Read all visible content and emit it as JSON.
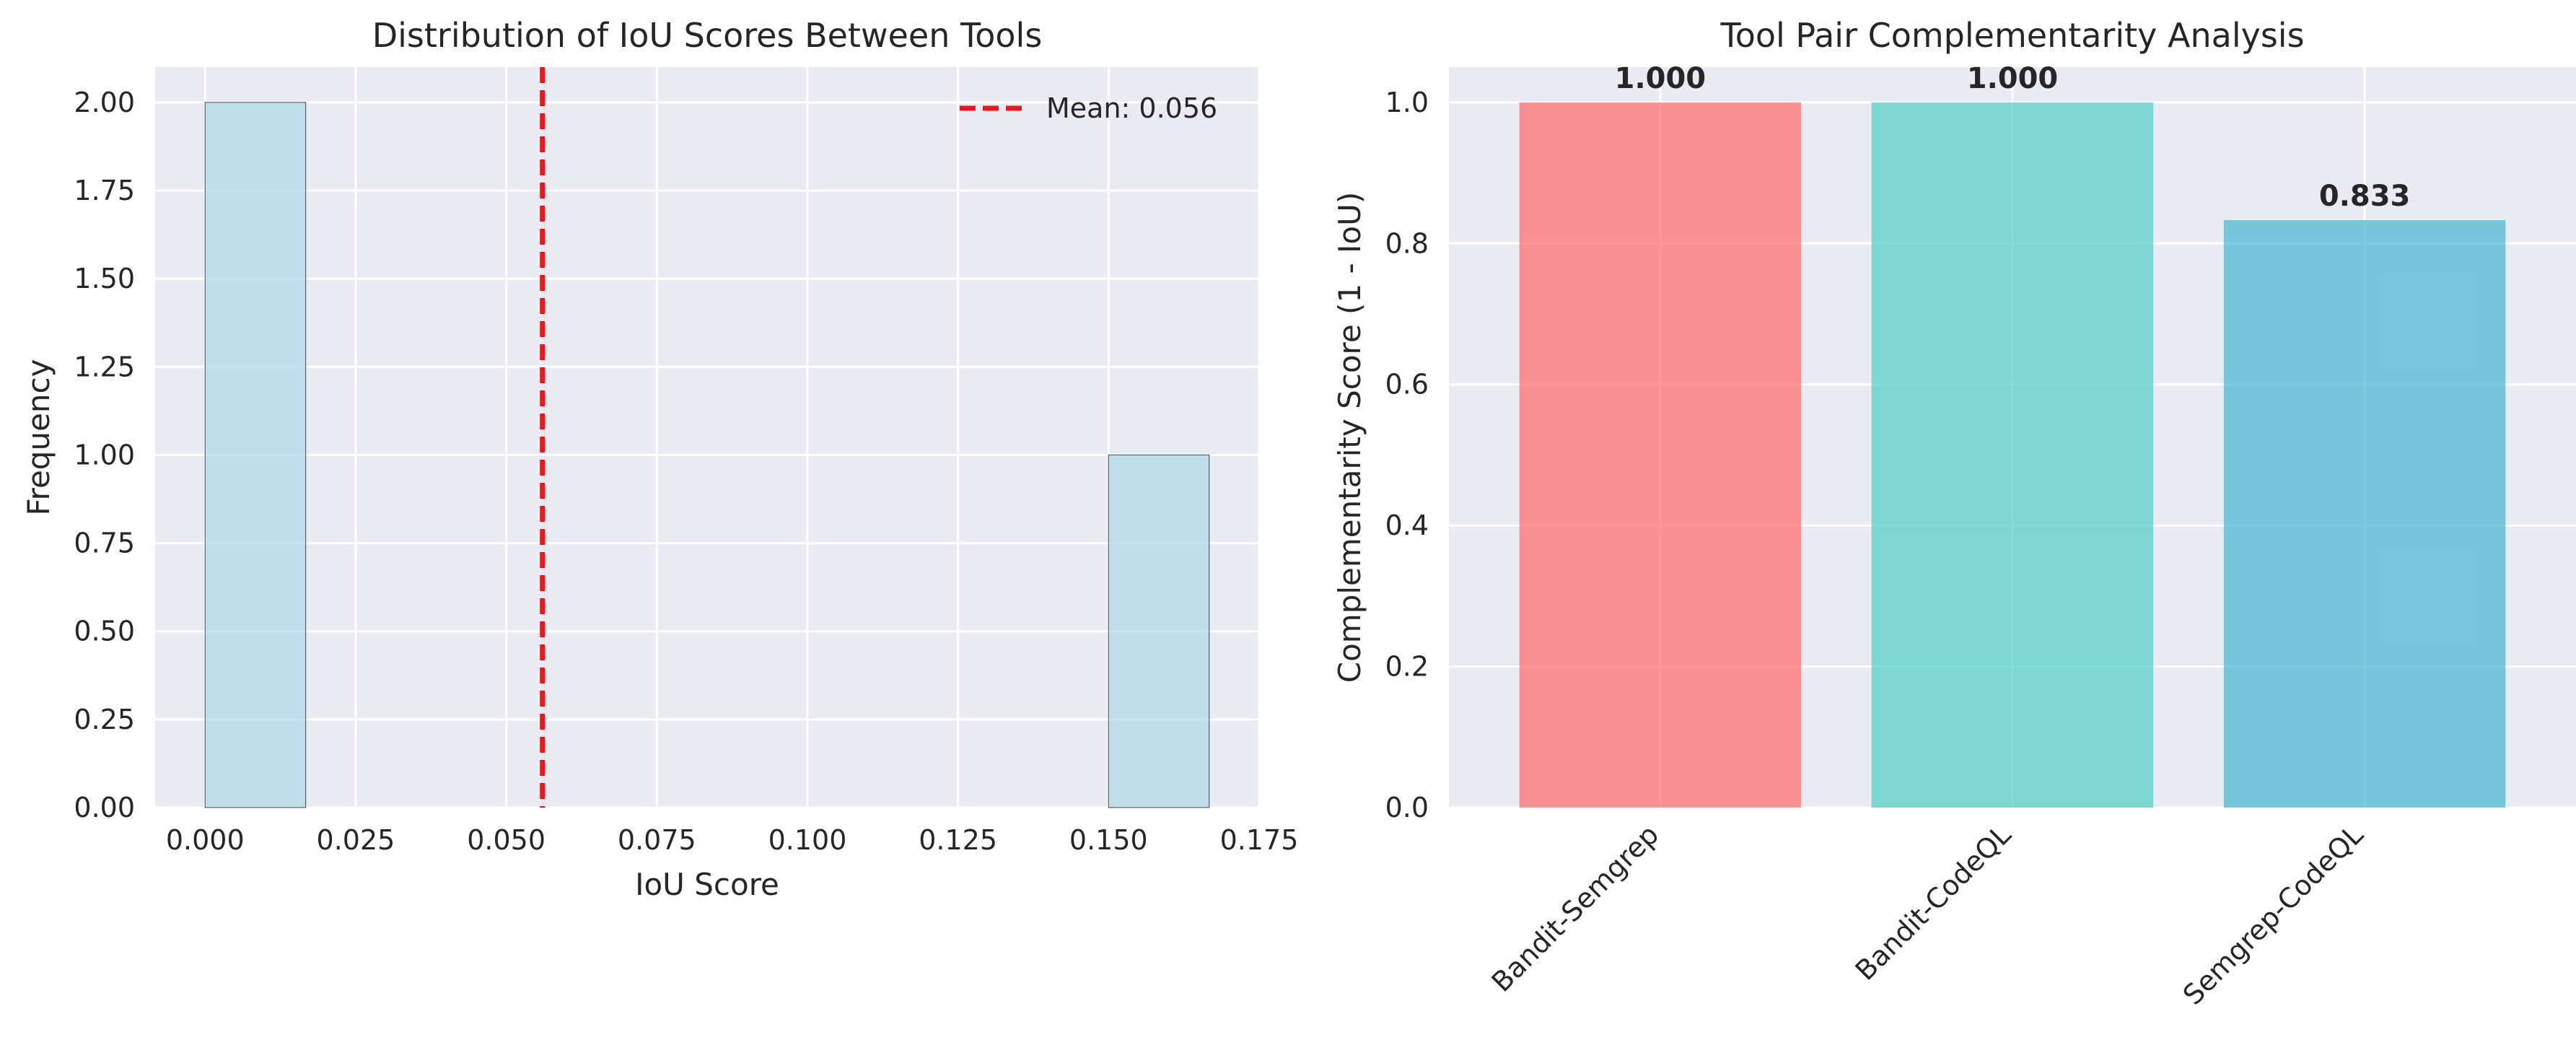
{
  "chart_data": [
    {
      "type": "bar",
      "subtype": "histogram",
      "title": "Distribution of IoU Scores Between Tools",
      "xlabel": "IoU Score",
      "ylabel": "Frequency",
      "xlim": [
        -0.0083,
        0.175
      ],
      "ylim": [
        0,
        2.1
      ],
      "xticks": [
        "0.000",
        "0.025",
        "0.050",
        "0.075",
        "0.100",
        "0.125",
        "0.150",
        "0.175"
      ],
      "yticks": [
        "0.00",
        "0.25",
        "0.50",
        "0.75",
        "1.00",
        "1.25",
        "1.50",
        "1.75",
        "2.00"
      ],
      "bins": [
        {
          "x0": 0.0,
          "x1": 0.0167,
          "count": 2
        },
        {
          "x0": 0.15,
          "x1": 0.1667,
          "count": 1
        }
      ],
      "bar_color": "#add8e6",
      "mean": {
        "value": 0.056,
        "label": "Mean: 0.056",
        "color": "#e41a1c"
      },
      "grid": true,
      "legend_position": "top-right"
    },
    {
      "type": "bar",
      "title": "Tool Pair Complementarity Analysis",
      "xlabel": "",
      "ylabel": "Complementarity Score (1 - IoU)",
      "ylim": [
        0,
        1.05
      ],
      "yticks": [
        "0.0",
        "0.2",
        "0.4",
        "0.6",
        "0.8",
        "1.0"
      ],
      "categories": [
        "Bandit-Semgrep",
        "Bandit-CodeQL",
        "Semgrep-CodeQL"
      ],
      "values": [
        1.0,
        1.0,
        0.833
      ],
      "value_labels": [
        "1.000",
        "1.000",
        "0.833"
      ],
      "colors": [
        "#ff6b6b",
        "#4ecdc4",
        "#45b7d1"
      ],
      "grid": true
    }
  ],
  "style": {
    "plot_background": "#eaeaf2",
    "grid_color": "#ffffff",
    "text_color": "#262626"
  }
}
